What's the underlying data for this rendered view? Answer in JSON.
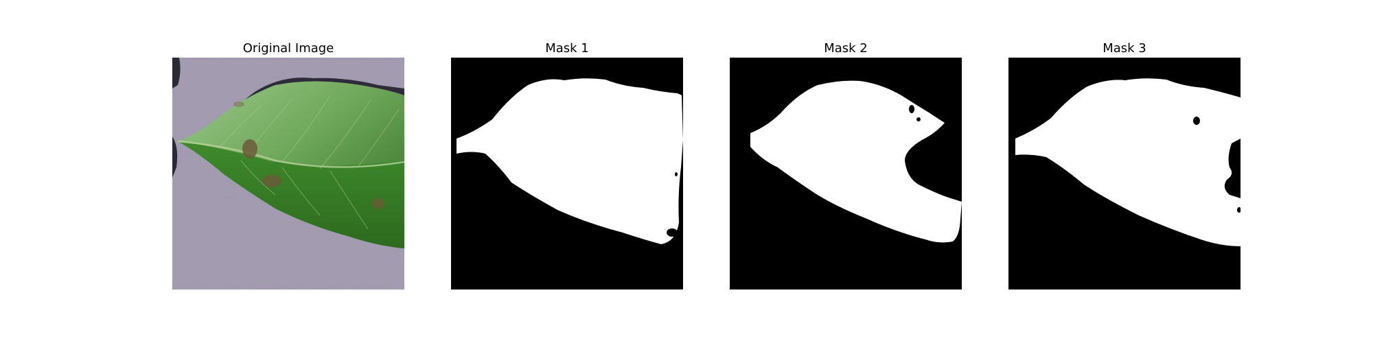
{
  "figure": {
    "panels": [
      {
        "title": "Original Image"
      },
      {
        "title": "Mask 1"
      },
      {
        "title": "Mask 2"
      },
      {
        "title": "Mask 3"
      }
    ]
  },
  "colors": {
    "background_paper": "#a79fb4",
    "leaf_light": "#8fc07a",
    "leaf_mid": "#4f8f35",
    "leaf_dark": "#2f6b20",
    "lesion": "#6b5a3a",
    "shadow": "#2a2a34",
    "mask_bg": "#000000",
    "mask_fg": "#ffffff"
  }
}
